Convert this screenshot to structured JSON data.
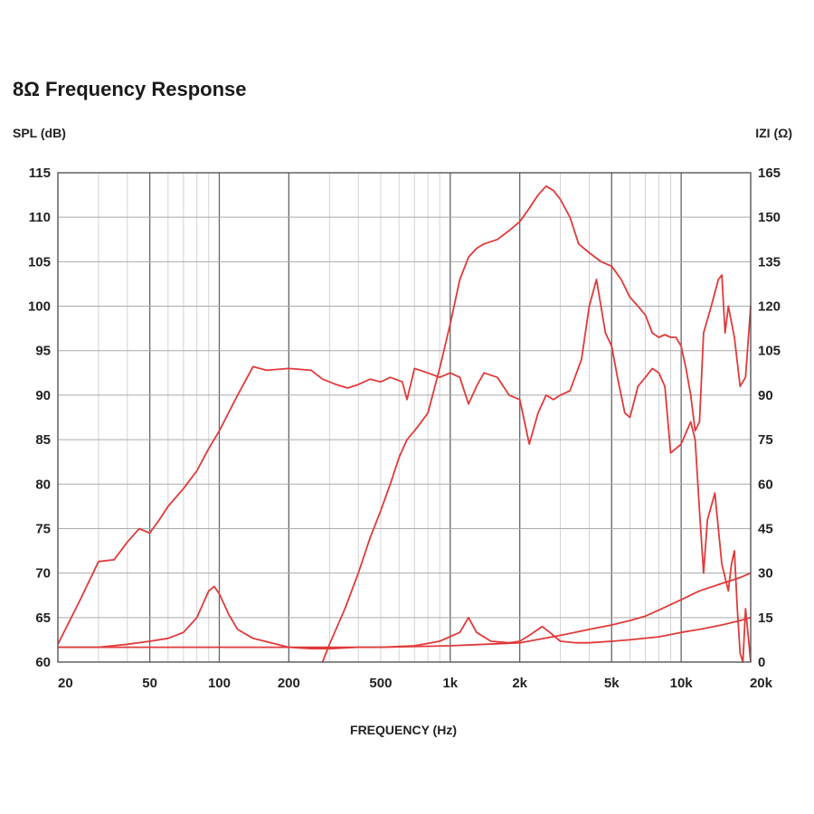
{
  "chart_data": {
    "type": "line",
    "title": "8Ω Frequency Response",
    "ylabel_left": "SPL (dB)",
    "ylabel_right": "IZI (Ω)",
    "xlabel": "FREQUENCY (Hz)",
    "x_scale": "log",
    "xlim": [
      20,
      20000
    ],
    "ylim_left": [
      60,
      115
    ],
    "ylim_right": [
      0,
      165
    ],
    "x_ticks": [
      {
        "value": 20,
        "label": "20"
      },
      {
        "value": 50,
        "label": "50"
      },
      {
        "value": 100,
        "label": "100"
      },
      {
        "value": 200,
        "label": "200"
      },
      {
        "value": 500,
        "label": "500"
      },
      {
        "value": 1000,
        "label": "1k"
      },
      {
        "value": 2000,
        "label": "2k"
      },
      {
        "value": 5000,
        "label": "5k"
      },
      {
        "value": 10000,
        "label": "10k"
      },
      {
        "value": 20000,
        "label": "20k"
      }
    ],
    "y_ticks_left": [
      {
        "value": 60,
        "label": "60"
      },
      {
        "value": 65,
        "label": "65"
      },
      {
        "value": 70,
        "label": "70"
      },
      {
        "value": 75,
        "label": "75"
      },
      {
        "value": 80,
        "label": "80"
      },
      {
        "value": 85,
        "label": "85"
      },
      {
        "value": 90,
        "label": "90"
      },
      {
        "value": 95,
        "label": "95"
      },
      {
        "value": 100,
        "label": "100"
      },
      {
        "value": 105,
        "label": "105"
      },
      {
        "value": 110,
        "label": "110"
      },
      {
        "value": 115,
        "label": "115"
      }
    ],
    "y_ticks_right": [
      {
        "value": 0,
        "label": "0"
      },
      {
        "value": 15,
        "label": "15"
      },
      {
        "value": 30,
        "label": "30"
      },
      {
        "value": 45,
        "label": "45"
      },
      {
        "value": 60,
        "label": "60"
      },
      {
        "value": 75,
        "label": "75"
      },
      {
        "value": 90,
        "label": "90"
      },
      {
        "value": 105,
        "label": "105"
      },
      {
        "value": 120,
        "label": "120"
      },
      {
        "value": 135,
        "label": "135"
      },
      {
        "value": 150,
        "label": "150"
      },
      {
        "value": 165,
        "label": "165"
      }
    ],
    "grid": true,
    "line_color": "#e03a3a",
    "series": [
      {
        "axis": "left",
        "points": [
          [
            20,
            62
          ],
          [
            25,
            67
          ],
          [
            30,
            71.3
          ],
          [
            35,
            71.5
          ],
          [
            40,
            73.5
          ],
          [
            45,
            75
          ],
          [
            50,
            74.5
          ],
          [
            55,
            76
          ],
          [
            60,
            77.5
          ],
          [
            70,
            79.5
          ],
          [
            80,
            81.5
          ],
          [
            90,
            84
          ],
          [
            100,
            86
          ],
          [
            120,
            90
          ],
          [
            140,
            93.2
          ],
          [
            160,
            92.8
          ],
          [
            200,
            93
          ],
          [
            250,
            92.8
          ],
          [
            280,
            91.8
          ],
          [
            320,
            91.2
          ],
          [
            360,
            90.8
          ],
          [
            400,
            91.2
          ],
          [
            450,
            91.8
          ],
          [
            500,
            91.5
          ],
          [
            550,
            92
          ],
          [
            620,
            91.5
          ],
          [
            650,
            89.5
          ],
          [
            700,
            93
          ],
          [
            800,
            92.5
          ],
          [
            900,
            92
          ],
          [
            1000,
            92.5
          ],
          [
            1100,
            92
          ],
          [
            1200,
            89
          ],
          [
            1300,
            91
          ],
          [
            1400,
            92.5
          ],
          [
            1600,
            92
          ],
          [
            1800,
            90
          ],
          [
            2000,
            89.5
          ],
          [
            2200,
            84.5
          ],
          [
            2400,
            88
          ],
          [
            2600,
            90
          ],
          [
            2800,
            89.5
          ],
          [
            3000,
            90
          ],
          [
            3300,
            90.5
          ],
          [
            3700,
            94
          ],
          [
            4000,
            100
          ],
          [
            4300,
            103
          ],
          [
            4700,
            97
          ],
          [
            5000,
            95.5
          ],
          [
            5300,
            92
          ],
          [
            5700,
            88
          ],
          [
            6000,
            87.5
          ],
          [
            6500,
            91
          ],
          [
            7000,
            92
          ],
          [
            7500,
            93
          ],
          [
            8000,
            92.5
          ],
          [
            8500,
            91
          ],
          [
            9000,
            83.5
          ],
          [
            10000,
            84.5
          ],
          [
            11000,
            87
          ],
          [
            11500,
            85
          ],
          [
            12000,
            77
          ],
          [
            12500,
            70
          ],
          [
            13000,
            76
          ],
          [
            14000,
            79
          ],
          [
            15000,
            71
          ],
          [
            16000,
            68
          ],
          [
            16500,
            71
          ],
          [
            17000,
            72.5
          ],
          [
            17500,
            66
          ],
          [
            18000,
            61
          ],
          [
            18500,
            60
          ],
          [
            19000,
            66
          ],
          [
            19500,
            63
          ],
          [
            20000,
            60
          ]
        ]
      },
      {
        "axis": "left",
        "points": [
          [
            280,
            60
          ],
          [
            300,
            62
          ],
          [
            350,
            66
          ],
          [
            400,
            70
          ],
          [
            450,
            74
          ],
          [
            500,
            77
          ],
          [
            550,
            80
          ],
          [
            600,
            83
          ],
          [
            650,
            85
          ],
          [
            700,
            86
          ],
          [
            750,
            87
          ],
          [
            800,
            88
          ],
          [
            900,
            93
          ],
          [
            1000,
            98
          ],
          [
            1100,
            103
          ],
          [
            1200,
            105.5
          ],
          [
            1300,
            106.5
          ],
          [
            1400,
            107
          ],
          [
            1600,
            107.5
          ],
          [
            1800,
            108.5
          ],
          [
            2000,
            109.5
          ],
          [
            2200,
            111
          ],
          [
            2400,
            112.5
          ],
          [
            2600,
            113.5
          ],
          [
            2800,
            113
          ],
          [
            3000,
            112
          ],
          [
            3300,
            110
          ],
          [
            3600,
            107
          ],
          [
            4000,
            106
          ],
          [
            4500,
            105
          ],
          [
            5000,
            104.5
          ],
          [
            5500,
            103
          ],
          [
            6000,
            101
          ],
          [
            6500,
            100
          ],
          [
            7000,
            99
          ],
          [
            7500,
            97
          ],
          [
            8000,
            96.5
          ],
          [
            8500,
            96.8
          ],
          [
            9000,
            96.5
          ],
          [
            9500,
            96.5
          ],
          [
            10000,
            95.5
          ],
          [
            10500,
            93
          ],
          [
            11000,
            90
          ],
          [
            11500,
            86
          ],
          [
            12000,
            87
          ],
          [
            12500,
            97
          ],
          [
            13500,
            100
          ],
          [
            14500,
            103
          ],
          [
            15000,
            103.5
          ],
          [
            15500,
            97
          ],
          [
            16000,
            100
          ],
          [
            17000,
            96.5
          ],
          [
            18000,
            91
          ],
          [
            19000,
            92
          ],
          [
            20000,
            100
          ]
        ]
      },
      {
        "axis": "right",
        "points": [
          [
            20,
            5
          ],
          [
            30,
            5
          ],
          [
            40,
            6
          ],
          [
            50,
            7
          ],
          [
            60,
            8
          ],
          [
            70,
            10
          ],
          [
            80,
            15
          ],
          [
            90,
            24
          ],
          [
            95,
            25.5
          ],
          [
            100,
            23
          ],
          [
            110,
            16
          ],
          [
            120,
            11
          ],
          [
            140,
            8
          ],
          [
            200,
            5
          ],
          [
            250,
            4.5
          ],
          [
            300,
            4.5
          ],
          [
            400,
            5
          ],
          [
            500,
            5
          ],
          [
            700,
            5.5
          ],
          [
            900,
            7
          ],
          [
            1100,
            10
          ],
          [
            1200,
            15
          ],
          [
            1300,
            10
          ],
          [
            1500,
            7
          ],
          [
            1800,
            6.5
          ],
          [
            2000,
            7
          ],
          [
            2200,
            9
          ],
          [
            2500,
            12
          ],
          [
            2700,
            10
          ],
          [
            3000,
            7
          ],
          [
            3500,
            6.5
          ],
          [
            4000,
            6.5
          ],
          [
            5000,
            7
          ],
          [
            6000,
            7.5
          ],
          [
            8000,
            8.5
          ],
          [
            10000,
            10
          ],
          [
            12000,
            11
          ],
          [
            15000,
            12.5
          ],
          [
            18000,
            14
          ],
          [
            20000,
            15
          ]
        ]
      },
      {
        "axis": "right",
        "points": [
          [
            20,
            5
          ],
          [
            200,
            5
          ],
          [
            500,
            5
          ],
          [
            1000,
            5.5
          ],
          [
            2000,
            6.5
          ],
          [
            3000,
            9
          ],
          [
            4000,
            11
          ],
          [
            5000,
            12.5
          ],
          [
            6000,
            14
          ],
          [
            7000,
            15.5
          ],
          [
            8000,
            17.5
          ],
          [
            10000,
            21
          ],
          [
            12000,
            24
          ],
          [
            15000,
            26.5
          ],
          [
            18000,
            28.5
          ],
          [
            20000,
            30
          ]
        ]
      }
    ]
  }
}
